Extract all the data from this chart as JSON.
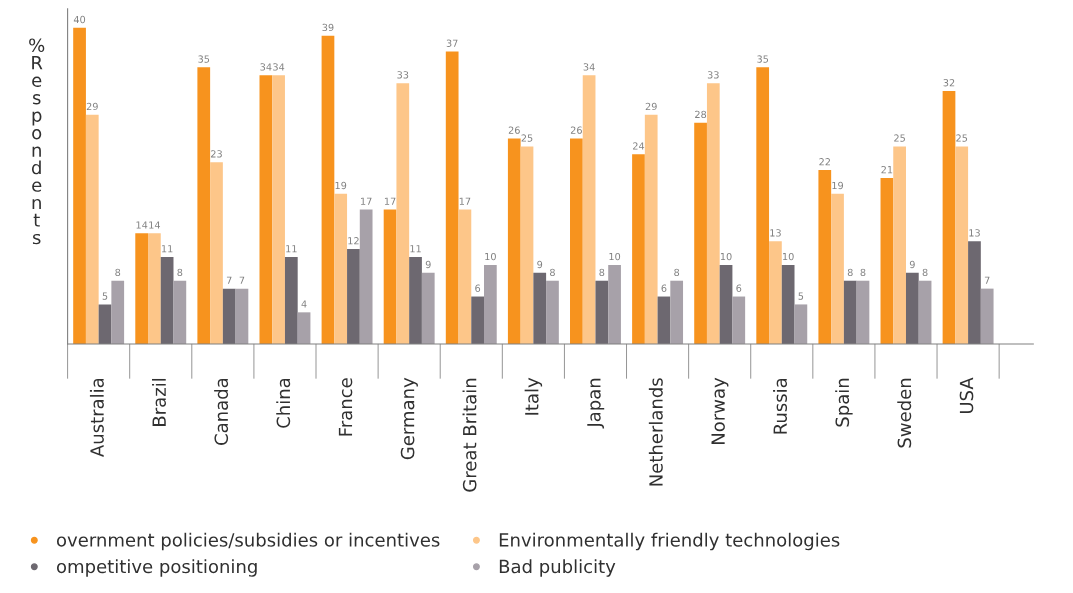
{
  "chart_data": {
    "type": "bar",
    "ylabel": "% Respondents",
    "categories": [
      "Australia",
      "Brazil",
      "Canada",
      "China",
      "France",
      "Germany",
      "Great Britain",
      "Italy",
      "Japan",
      "Netherlands",
      "Norway",
      "Russia",
      "Spain",
      "Sweden",
      "USA"
    ],
    "series": [
      {
        "name": "overnment policies/subsidies or incentives",
        "color": "#f7931e",
        "values": [
          40,
          14,
          35,
          34,
          39,
          17,
          37,
          26,
          26,
          24,
          28,
          35,
          22,
          21,
          32
        ]
      },
      {
        "name": "Environmentally friendly technologies",
        "color": "#fdc689",
        "values": [
          29,
          14,
          23,
          34,
          19,
          33,
          17,
          25,
          34,
          29,
          33,
          13,
          19,
          25,
          25
        ]
      },
      {
        "name": "ompetitive positioning",
        "color": "#6d6870",
        "values": [
          5,
          11,
          7,
          11,
          12,
          11,
          6,
          9,
          8,
          6,
          10,
          10,
          8,
          9,
          13
        ]
      },
      {
        "name": "Bad publicity",
        "color": "#a7a1a9",
        "values": [
          8,
          8,
          7,
          4,
          17,
          9,
          10,
          8,
          10,
          8,
          6,
          5,
          8,
          8,
          7
        ]
      }
    ],
    "data_labels": true,
    "grid": false,
    "legend": "bottom left"
  }
}
